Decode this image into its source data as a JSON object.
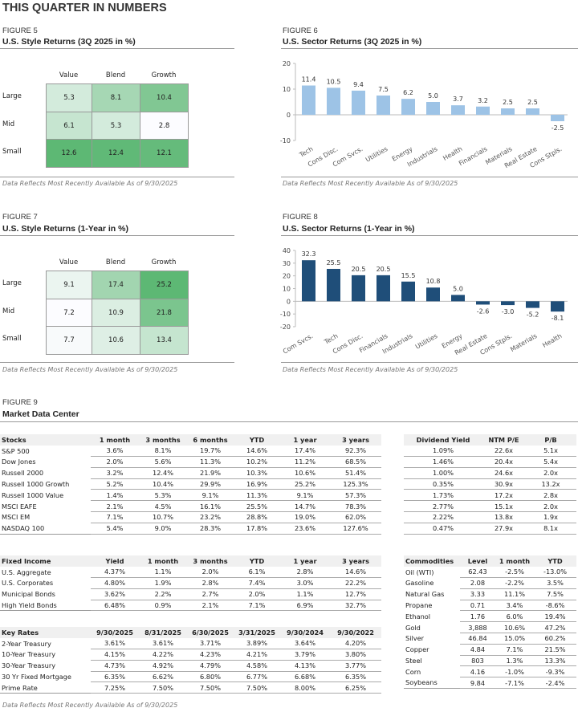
{
  "page_title": "THIS QUARTER IN NUMBERS",
  "footnote": "Data Reflects Most Recently Available As of 9/30/2025",
  "figure5": {
    "label": "FIGURE 5",
    "title": "U.S. Style Returns (3Q 2025 in %)",
    "columns": [
      "Value",
      "Blend",
      "Growth"
    ],
    "rows": [
      "Large",
      "Mid",
      "Small"
    ],
    "values": [
      [
        "5.3",
        "8.1",
        "10.4"
      ],
      [
        "6.1",
        "5.3",
        "2.8"
      ],
      [
        "12.6",
        "12.4",
        "12.1"
      ]
    ]
  },
  "figure6": {
    "label": "FIGURE 6",
    "title": "U.S. Sector Returns (3Q 2025 in %)"
  },
  "figure7": {
    "label": "FIGURE 7",
    "title": "U.S. Style Returns (1-Year in %)",
    "columns": [
      "Value",
      "Blend",
      "Growth"
    ],
    "rows": [
      "Large",
      "Mid",
      "Small"
    ],
    "values": [
      [
        "9.1",
        "17.4",
        "25.2"
      ],
      [
        "7.2",
        "10.9",
        "21.8"
      ],
      [
        "7.7",
        "10.6",
        "13.4"
      ]
    ]
  },
  "figure8": {
    "label": "FIGURE 8",
    "title": "U.S. Sector Returns (1-Year in %)"
  },
  "figure9": {
    "label": "FIGURE 9",
    "title": "Market Data Center",
    "stocks": {
      "headers": [
        "Stocks",
        "1 month",
        "3 months",
        "6 months",
        "YTD",
        "1 year",
        "3 years"
      ],
      "rows": [
        [
          "S&P 500",
          "3.6%",
          "8.1%",
          "19.7%",
          "14.6%",
          "17.4%",
          "92.3%"
        ],
        [
          "Dow Jones",
          "2.0%",
          "5.6%",
          "11.3%",
          "10.2%",
          "11.2%",
          "68.5%"
        ],
        [
          "Russell 2000",
          "3.2%",
          "12.4%",
          "21.9%",
          "10.3%",
          "10.6%",
          "51.4%"
        ],
        [
          "Russell 1000 Growth",
          "5.2%",
          "10.4%",
          "29.9%",
          "16.9%",
          "25.2%",
          "125.3%"
        ],
        [
          "Russell 1000 Value",
          "1.4%",
          "5.3%",
          "9.1%",
          "11.3%",
          "9.1%",
          "57.3%"
        ],
        [
          "MSCI EAFE",
          "2.1%",
          "4.5%",
          "16.1%",
          "25.5%",
          "14.7%",
          "78.3%"
        ],
        [
          "MSCI EM",
          "7.1%",
          "10.7%",
          "23.2%",
          "28.8%",
          "19.0%",
          "62.0%"
        ],
        [
          "NASDAQ 100",
          "5.4%",
          "9.0%",
          "28.3%",
          "17.8%",
          "23.6%",
          "127.6%"
        ]
      ]
    },
    "valuation": {
      "headers": [
        "Dividend Yield",
        "NTM P/E",
        "P/B"
      ],
      "rows": [
        [
          "1.09%",
          "22.6x",
          "5.1x"
        ],
        [
          "1.46%",
          "20.4x",
          "5.4x"
        ],
        [
          "1.00%",
          "24.6x",
          "2.0x"
        ],
        [
          "0.35%",
          "30.9x",
          "13.2x"
        ],
        [
          "1.73%",
          "17.2x",
          "2.8x"
        ],
        [
          "2.77%",
          "15.1x",
          "2.0x"
        ],
        [
          "2.22%",
          "13.8x",
          "1.9x"
        ],
        [
          "0.47%",
          "27.9x",
          "8.1x"
        ]
      ]
    },
    "fixed_income": {
      "headers": [
        "Fixed Income",
        "Yield",
        "1 month",
        "3 months",
        "YTD",
        "1 year",
        "3 years"
      ],
      "rows": [
        [
          "U.S. Aggregate",
          "4.37%",
          "1.1%",
          "2.0%",
          "6.1%",
          "2.8%",
          "14.6%"
        ],
        [
          "U.S. Corporates",
          "4.80%",
          "1.9%",
          "2.8%",
          "7.4%",
          "3.0%",
          "22.2%"
        ],
        [
          "Municipal Bonds",
          "3.62%",
          "2.2%",
          "2.7%",
          "2.0%",
          "1.1%",
          "12.7%"
        ],
        [
          "High Yield Bonds",
          "6.48%",
          "0.9%",
          "2.1%",
          "7.1%",
          "6.9%",
          "32.7%"
        ]
      ]
    },
    "key_rates": {
      "headers": [
        "Key Rates",
        "9/30/2025",
        "8/31/2025",
        "6/30/2025",
        "3/31/2025",
        "9/30/2024",
        "9/30/2022"
      ],
      "rows": [
        [
          "2-Year Treasury",
          "3.61%",
          "3.61%",
          "3.71%",
          "3.89%",
          "3.64%",
          "4.20%"
        ],
        [
          "10-Year Treasury",
          "4.15%",
          "4.22%",
          "4.23%",
          "4.21%",
          "3.79%",
          "3.80%"
        ],
        [
          "30-Year Treasury",
          "4.73%",
          "4.92%",
          "4.79%",
          "4.58%",
          "4.13%",
          "3.77%"
        ],
        [
          "30 Yr Fixed Mortgage",
          "6.35%",
          "6.62%",
          "6.80%",
          "6.77%",
          "6.68%",
          "6.35%"
        ],
        [
          "Prime Rate",
          "7.25%",
          "7.50%",
          "7.50%",
          "7.50%",
          "8.00%",
          "6.25%"
        ]
      ]
    },
    "commodities": {
      "headers": [
        "Commodities",
        "Level",
        "1 month",
        "YTD"
      ],
      "rows": [
        [
          "Oil (WTI)",
          "62.43",
          "-2.5%",
          "-13.0%"
        ],
        [
          "Gasoline",
          "2.08",
          "-2.2%",
          "3.5%"
        ],
        [
          "Natural Gas",
          "3.33",
          "11.1%",
          "7.5%"
        ],
        [
          "Propane",
          "0.71",
          "3.4%",
          "-8.6%"
        ],
        [
          "Ethanol",
          "1.76",
          "6.0%",
          "19.4%"
        ],
        [
          "Gold",
          "3,888",
          "10.6%",
          "47.2%"
        ],
        [
          "Silver",
          "46.84",
          "15.0%",
          "60.2%"
        ],
        [
          "Copper",
          "4.84",
          "7.1%",
          "21.5%"
        ],
        [
          "Steel",
          "803",
          "1.3%",
          "13.3%"
        ],
        [
          "Corn",
          "4.16",
          "-1.0%",
          "-9.3%"
        ],
        [
          "Soybeans",
          "9.84",
          "-7.1%",
          "-2.4%"
        ]
      ]
    }
  },
  "colors": {
    "heat_low": "#fcfcff",
    "heat_high": "#5db874",
    "bar_3q": "#9dc3e6",
    "bar_1y": "#1f4e79",
    "rule": "#999999"
  },
  "chart_data": [
    {
      "type": "bar",
      "title": "U.S. Sector Returns (3Q 2025 in %)",
      "categories": [
        "Tech",
        "Cons Disc.",
        "Com Svcs.",
        "Utilities",
        "Energy",
        "Industrials",
        "Health",
        "Financials",
        "Materials",
        "Real Estate",
        "Cons Stpls."
      ],
      "values": [
        11.4,
        10.5,
        9.4,
        7.5,
        6.2,
        5.0,
        3.7,
        3.2,
        2.5,
        2.5,
        -2.5
      ],
      "labels": [
        "11.4",
        "10.5",
        "9.4",
        "7.5",
        "6.2",
        "5.0",
        "3.7",
        "3.2",
        "2.5",
        "2.5",
        "-2.5"
      ],
      "yticks": [
        "20",
        "10",
        "0",
        "-10"
      ],
      "ylim": [
        -10,
        20
      ],
      "grid": false,
      "color": "#9dc3e6"
    },
    {
      "type": "bar",
      "title": "U.S. Sector Returns (1-Year in %)",
      "categories": [
        "Com Svcs.",
        "Tech",
        "Cons Disc.",
        "Financials",
        "Industrials",
        "Utilities",
        "Energy",
        "Real Estate",
        "Cons Stpls.",
        "Materials",
        "Health"
      ],
      "values": [
        32.3,
        25.5,
        20.5,
        20.5,
        15.5,
        10.8,
        5.0,
        -2.6,
        -3.0,
        -5.2,
        -8.1
      ],
      "labels": [
        "32.3",
        "25.5",
        "20.5",
        "20.5",
        "15.5",
        "10.8",
        "5.0",
        "-2.6",
        "-3.0",
        "-5.2",
        "-8.1"
      ],
      "yticks": [
        "40",
        "30",
        "20",
        "10",
        "0",
        "-10",
        "-20"
      ],
      "ylim": [
        -20,
        40
      ],
      "grid": false,
      "color": "#1f4e79"
    }
  ]
}
